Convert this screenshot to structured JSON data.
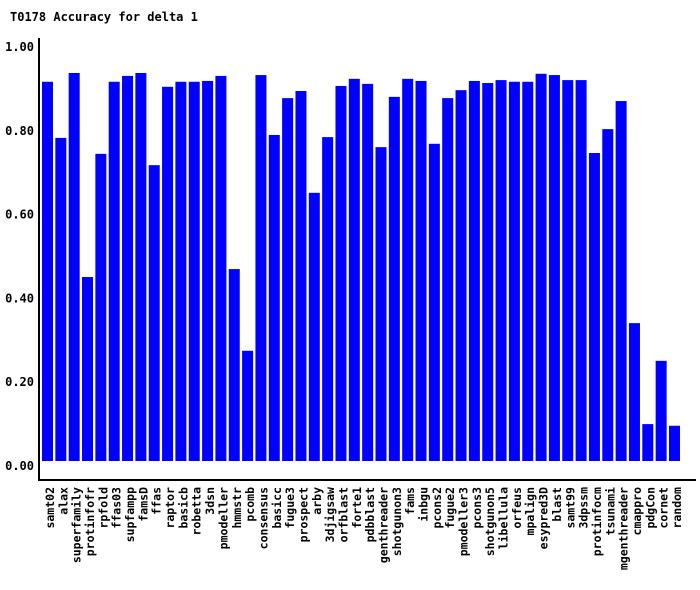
{
  "chart_data": {
    "type": "bar",
    "title": "T0178 Accuracy for delta 1",
    "xlabel": "",
    "ylabel": "",
    "ylim": [
      0,
      1
    ],
    "yticks": [
      "0.00",
      "0.20",
      "0.40",
      "0.60",
      "0.80",
      "1.00"
    ],
    "grid": false,
    "bar_color": "#0000ff",
    "categories": [
      "samt02",
      "alax",
      "superfamily",
      "protinfofr",
      "rpfold",
      "ffas03",
      "supfampp",
      "famsD",
      "ffas",
      "raptor",
      "basicb",
      "robetta",
      "3dsn",
      "pmodeller",
      "hmmstr",
      "pcomb",
      "consensus",
      "basicc",
      "fugue3",
      "prospect",
      "arby",
      "3djigsaw",
      "orfblast",
      "forte1",
      "pdbblast",
      "genthreader",
      "shotgunon3",
      "fams",
      "inbgu",
      "pcons2",
      "fugue2",
      "pmodeller3",
      "pcons3",
      "shotgunon5",
      "libellula",
      "orfeus",
      "mpalign",
      "esypred3D",
      "blast",
      "samt99",
      "3dpssm",
      "protinfocm",
      "tsunami",
      "mgenthreader",
      "cmappro",
      "pdgCon",
      "cornet",
      "random"
    ],
    "values": [
      0.917,
      0.783,
      0.938,
      0.451,
      0.745,
      0.917,
      0.931,
      0.938,
      0.718,
      0.905,
      0.917,
      0.917,
      0.919,
      0.931,
      0.47,
      0.275,
      0.933,
      0.79,
      0.878,
      0.895,
      0.652,
      0.785,
      0.907,
      0.924,
      0.912,
      0.761,
      0.881,
      0.924,
      0.919,
      0.769,
      0.878,
      0.897,
      0.919,
      0.914,
      0.921,
      0.917,
      0.917,
      0.936,
      0.933,
      0.921,
      0.921,
      0.747,
      0.804,
      0.871,
      0.341,
      0.1,
      0.251,
      0.096
    ]
  }
}
